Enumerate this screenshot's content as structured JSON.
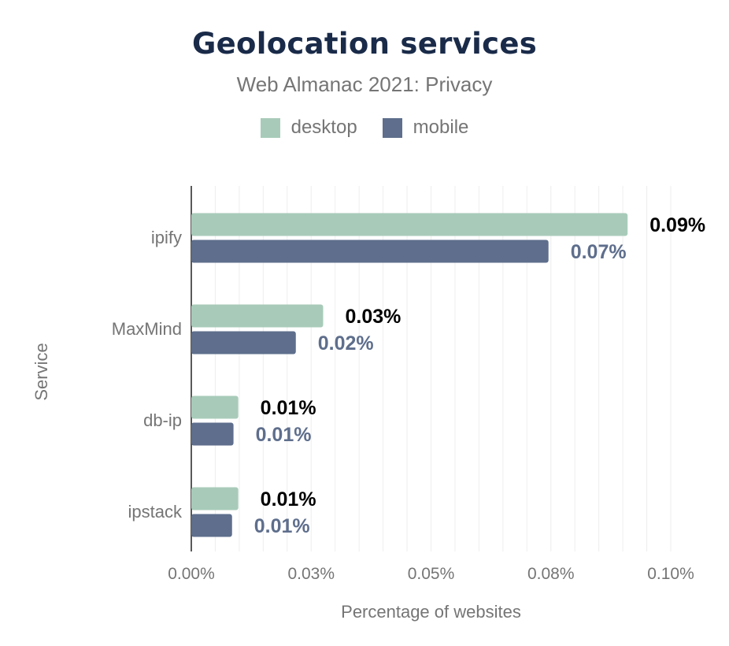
{
  "chart_data": {
    "type": "bar",
    "orientation": "horizontal",
    "title": "Geolocation services",
    "subtitle": "Web Almanac 2021: Privacy",
    "xlabel": "Percentage of websites",
    "ylabel": "Service",
    "categories": [
      "ipify",
      "MaxMind",
      "db-ip",
      "ipstack"
    ],
    "series": [
      {
        "name": "desktop",
        "color": "#a8cbb9",
        "label_color": "#000000",
        "values": [
          0.091,
          0.0275,
          0.0098,
          0.0098
        ],
        "labels": [
          "0.09%",
          "0.03%",
          "0.01%",
          "0.01%"
        ]
      },
      {
        "name": "mobile",
        "color": "#5e6e8c",
        "label_color": "#5e6e8c",
        "values": [
          0.0745,
          0.0218,
          0.0088,
          0.0085
        ],
        "labels": [
          "0.07%",
          "0.02%",
          "0.01%",
          "0.01%"
        ]
      }
    ],
    "xlim": [
      0,
      0.1
    ],
    "xticks": [
      0,
      0.025,
      0.05,
      0.075,
      0.1
    ],
    "xtick_labels": [
      "0.00%",
      "0.03%",
      "0.05%",
      "0.08%",
      "0.10%"
    ],
    "grid": true,
    "legend_position": "top-center"
  }
}
